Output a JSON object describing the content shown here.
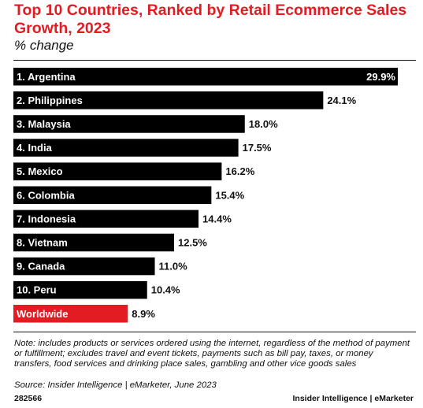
{
  "header": {
    "title": "Top 10 Countries, Ranked by Retail Ecommerce Sales Growth, 2023",
    "subtitle": "% change"
  },
  "colors": {
    "title": "#e31b23",
    "bar": "#000000",
    "highlight_bar": "#e31b23",
    "bar_text": "#ffffff"
  },
  "chart_data": {
    "type": "bar",
    "orientation": "horizontal",
    "title": "Top 10 Countries, Ranked by Retail Ecommerce Sales Growth, 2023",
    "subtitle": "% change",
    "categories": [
      "1. Argentina",
      "2. Philippines",
      "3. Malaysia",
      "4. India",
      "5. Mexico",
      "6. Colombia",
      "7. Indonesia",
      "8. Vietnam",
      "9. Canada",
      "10. Peru",
      "Worldwide"
    ],
    "values": [
      29.9,
      24.1,
      18.0,
      17.5,
      16.2,
      15.4,
      14.4,
      12.5,
      11.0,
      10.4,
      8.9
    ],
    "value_labels": [
      "29.9%",
      "24.1%",
      "18.0%",
      "17.5%",
      "16.2%",
      "15.4%",
      "14.4%",
      "12.5%",
      "11.0%",
      "10.4%",
      "8.9%"
    ],
    "highlight": "Worldwide",
    "xlim": [
      0,
      29.9
    ],
    "grid": false
  },
  "footer": {
    "note": "Note: includes products or services ordered using the internet, regardless of the method of payment or fulfillment; excludes travel and event tickets, payments such as bill pay, taxes, or money transfers, food services and drinking place sales, gambling and other vice goods sales",
    "source": "Source: Insider Intelligence | eMarketer, June 2023",
    "chart_id": "282566",
    "brand": "Insider Intelligence | eMarketer"
  }
}
